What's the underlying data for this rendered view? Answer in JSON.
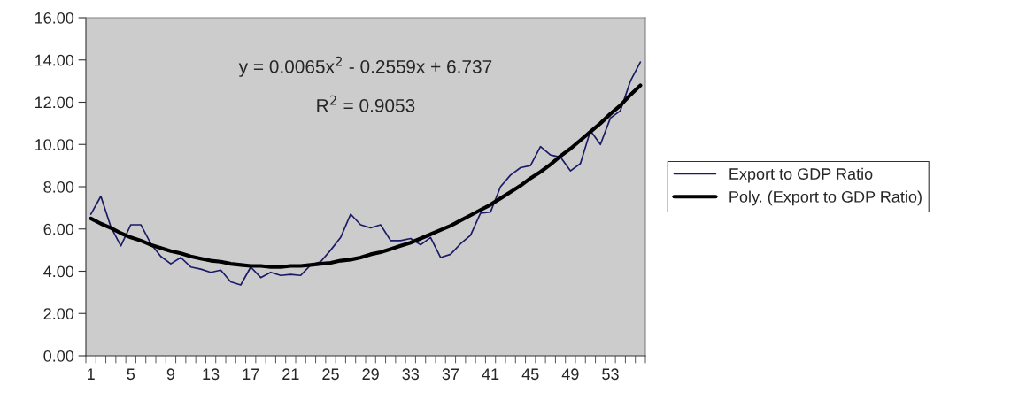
{
  "chart_data": {
    "type": "line",
    "categories": [
      "1",
      null,
      null,
      null,
      "5",
      null,
      null,
      null,
      "9",
      null,
      null,
      null,
      "13",
      null,
      null,
      null,
      "17",
      null,
      null,
      null,
      "21",
      null,
      null,
      null,
      "25",
      null,
      null,
      null,
      "29",
      null,
      null,
      null,
      "33",
      null,
      null,
      null,
      "37",
      null,
      null,
      null,
      "41",
      null,
      null,
      null,
      "45",
      null,
      null,
      null,
      "49",
      null,
      null,
      null,
      "53",
      null,
      null,
      null
    ],
    "series": [
      {
        "name": "Export to GDP Ratio",
        "color": "#1a1a66",
        "values": [
          6.7,
          7.55,
          6.1,
          5.2,
          6.2,
          6.2,
          5.3,
          4.7,
          4.35,
          4.65,
          4.2,
          4.1,
          3.95,
          4.05,
          3.5,
          3.35,
          4.2,
          3.7,
          3.95,
          3.8,
          3.85,
          3.8,
          4.3,
          4.45,
          5.0,
          5.6,
          6.7,
          6.2,
          6.05,
          6.2,
          5.45,
          5.45,
          5.55,
          5.25,
          5.6,
          4.65,
          4.8,
          5.3,
          5.7,
          6.75,
          6.8,
          8.0,
          8.55,
          8.9,
          9.0,
          9.9,
          9.5,
          9.4,
          8.75,
          9.1,
          10.65,
          10.0,
          11.25,
          11.6,
          13.0,
          13.9
        ]
      },
      {
        "name": "Poly. (Export to GDP Ratio)",
        "color": "#000000",
        "type": "line",
        "values": [
          6.5,
          6.25,
          6.05,
          5.8,
          5.6,
          5.45,
          5.25,
          5.1,
          4.95,
          4.85,
          4.7,
          4.6,
          4.5,
          4.45,
          4.35,
          4.3,
          4.25,
          4.25,
          4.2,
          4.2,
          4.25,
          4.25,
          4.3,
          4.35,
          4.4,
          4.5,
          4.55,
          4.65,
          4.8,
          4.9,
          5.05,
          5.2,
          5.35,
          5.55,
          5.75,
          5.95,
          6.15,
          6.4,
          6.65,
          6.9,
          7.15,
          7.45,
          7.75,
          8.05,
          8.4,
          8.7,
          9.05,
          9.45,
          9.8,
          10.2,
          10.6,
          11.0,
          11.45,
          11.85,
          12.35,
          12.8
        ]
      }
    ],
    "ylim": [
      0,
      16
    ],
    "yticks": [
      {
        "value": 0,
        "label": "0.00"
      },
      {
        "value": 2,
        "label": "2.00"
      },
      {
        "value": 4,
        "label": "4.00"
      },
      {
        "value": 6,
        "label": "6.00"
      },
      {
        "value": 8,
        "label": "8.00"
      },
      {
        "value": 10,
        "label": "10.00"
      },
      {
        "value": 12,
        "label": "12.00"
      },
      {
        "value": 14,
        "label": "14.00"
      },
      {
        "value": 16,
        "label": "16.00"
      }
    ],
    "annotations": [
      "y = 0.0065x$^{2}$ - 0.2559x + 6.737",
      "R$^{2}$ = 0.9053"
    ],
    "legend": "right",
    "marker": "none",
    "line_style": "solid"
  }
}
